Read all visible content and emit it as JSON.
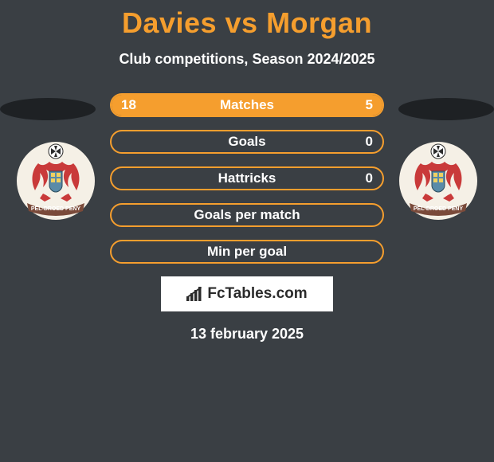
{
  "background_color": "#3a3f44",
  "accent_color": "#f59e2e",
  "text_color": "#ffffff",
  "title": "Davies vs Morgan",
  "title_fontsize": 36,
  "title_color": "#f59e2e",
  "subtitle": "Club competitions, Season 2024/2025",
  "subtitle_fontsize": 18,
  "brand": "FcTables.com",
  "date": "13 february 2025",
  "shadow_ellipse_color": "#1e2124",
  "crest": {
    "bg_color": "#f5f0e6",
    "dragon_color": "#c93a3a",
    "shield_color": "#5a8ba8",
    "ball_colors": [
      "#ffffff",
      "#2b2b2b"
    ],
    "ribbon_color": "#7a4a3a",
    "ribbon_text_color": "#ffffff"
  },
  "bar_style": {
    "border_color": "#f59e2e",
    "border_width": 2,
    "border_radius": 15,
    "height": 30,
    "fill_color": "#f59e2e",
    "label_fontsize": 17,
    "value_fontsize": 17
  },
  "bars": [
    {
      "label": "Matches",
      "left_val": "18",
      "right_val": "5",
      "left_pct": 78,
      "right_pct": 22,
      "show_vals": true
    },
    {
      "label": "Goals",
      "left_val": "",
      "right_val": "0",
      "left_pct": 0,
      "right_pct": 0,
      "show_vals": true
    },
    {
      "label": "Hattricks",
      "left_val": "",
      "right_val": "0",
      "left_pct": 0,
      "right_pct": 0,
      "show_vals": true
    },
    {
      "label": "Goals per match",
      "left_val": "",
      "right_val": "",
      "left_pct": 0,
      "right_pct": 0,
      "show_vals": false
    },
    {
      "label": "Min per goal",
      "left_val": "",
      "right_val": "",
      "left_pct": 0,
      "right_pct": 0,
      "show_vals": false
    }
  ]
}
